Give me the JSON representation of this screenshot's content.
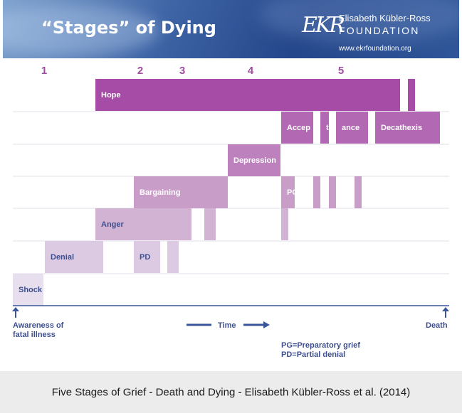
{
  "header": {
    "title": "“Stages” of Dying",
    "logo_mark": "EKR",
    "org_name": "Elisabeth Kübler-Ross",
    "org_foundation": "FOUNDATION",
    "url": "www.ekrfoundation.org"
  },
  "stage_numbers": [
    "1",
    "2",
    "3",
    "4",
    "5"
  ],
  "bars": [
    {
      "label": "Hope",
      "row": 0
    },
    {
      "label": "",
      "row": 0
    },
    {
      "label": "Accep",
      "row": 1
    },
    {
      "label": "t",
      "row": 1
    },
    {
      "label": "ance",
      "row": 1
    },
    {
      "label": "Decathexis",
      "row": 1
    },
    {
      "label": "Depression",
      "row": 2
    },
    {
      "label": "Bargaining",
      "row": 3
    },
    {
      "label": "PG",
      "row": 3
    },
    {
      "label": "",
      "row": 3
    },
    {
      "label": "",
      "row": 3
    },
    {
      "label": "",
      "row": 3
    },
    {
      "label": "Anger",
      "row": 4
    },
    {
      "label": "",
      "row": 4
    },
    {
      "label": "",
      "row": 4
    },
    {
      "label": "Denial",
      "row": 5
    },
    {
      "label": "PD",
      "row": 5
    },
    {
      "label": "",
      "row": 5
    },
    {
      "label": "Shock",
      "row": 6
    }
  ],
  "axis": {
    "left_label_line1": "Awareness of",
    "left_label_line2": "fatal illness",
    "time_label": "Time",
    "right_label": "Death"
  },
  "legend": {
    "pg": "PG=Preparatory grief",
    "pd": "PD=Partial denial"
  },
  "caption": "Five Stages of Grief - Death and Dying - Elisabeth Kübler-Ross et al. (2014)",
  "colors": {
    "hope": "#a64ca6",
    "acceptance": "#b268b2",
    "depression": "#bd82bd",
    "bargaining": "#c89ec8",
    "anger": "#d3b3d3",
    "denial": "#dcc9e2",
    "shock": "#e8dfee",
    "label_text": "#3d4f8f",
    "stage_number": "#a04ca0",
    "axis": "#3b559a"
  }
}
